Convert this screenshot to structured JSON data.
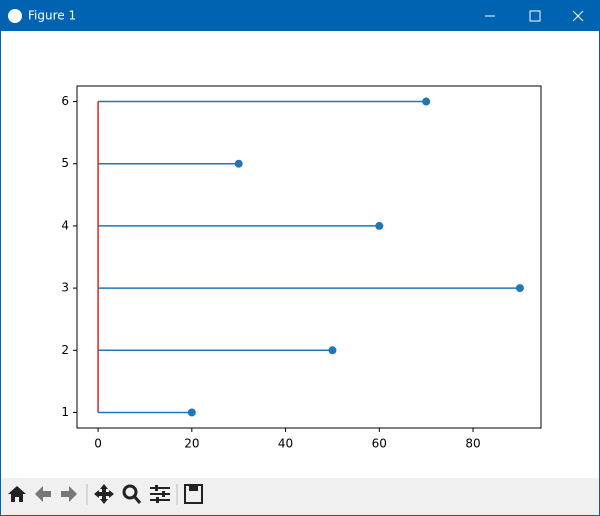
{
  "window": {
    "title": "Figure 1"
  },
  "chart_data": {
    "type": "stem",
    "orientation": "horizontal",
    "y": [
      1,
      2,
      3,
      4,
      5,
      6
    ],
    "values": [
      20,
      50,
      90,
      60,
      30,
      70
    ],
    "color": "#1f77b4",
    "baseline_color": "#d62728",
    "xlim": [
      -4.5,
      94.5
    ],
    "xticks": [
      0,
      20,
      40,
      60,
      80
    ],
    "ylim": [
      0.75,
      6.25
    ],
    "yticks": [
      1,
      2,
      3,
      4,
      5,
      6
    ]
  }
}
